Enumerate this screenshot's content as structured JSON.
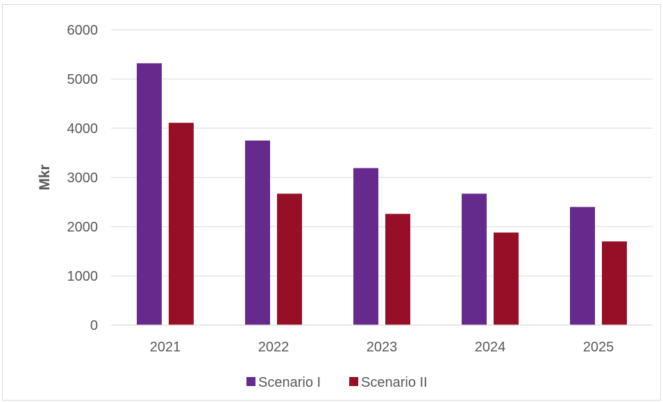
{
  "chart_data": {
    "type": "bar",
    "title": "",
    "xlabel": "",
    "ylabel": "Mkr",
    "categories": [
      "2021",
      "2022",
      "2023",
      "2024",
      "2025"
    ],
    "series": [
      {
        "name": "Scenario I",
        "color": "#652A8C",
        "values": [
          5320,
          3750,
          3190,
          2670,
          2400
        ]
      },
      {
        "name": "Scenario II",
        "color": "#960F27",
        "values": [
          4110,
          2670,
          2260,
          1880,
          1700
        ]
      }
    ],
    "ylim": [
      0,
      6000
    ],
    "yticks": [
      0,
      1000,
      2000,
      3000,
      4000,
      5000,
      6000
    ],
    "grid": true,
    "legend_position": "bottom"
  }
}
